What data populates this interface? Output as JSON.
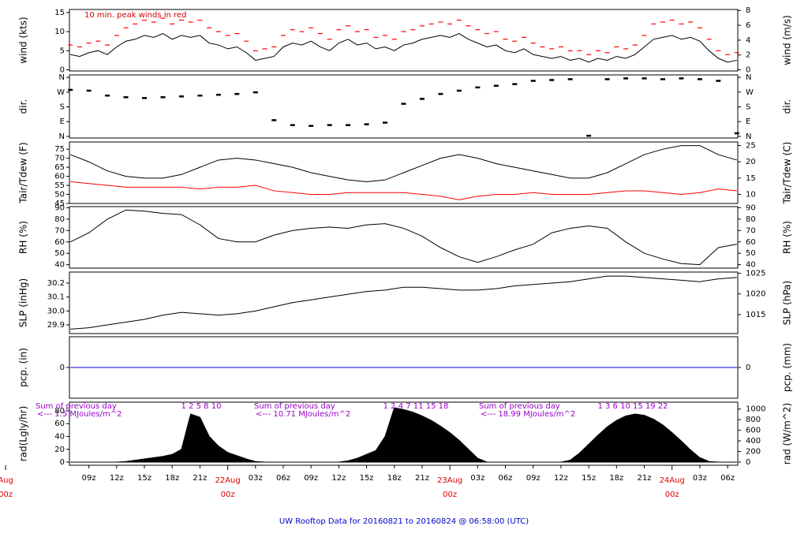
{
  "chart_data": [
    {
      "type": "line",
      "ylabel": "wind (kts)",
      "y2label": "wind (m/s)",
      "note": "10 min. peak winds in red",
      "xlim": [
        6.9,
        79.1
      ],
      "ylim": [
        -0.3,
        15.8
      ],
      "yticks": [
        0,
        5,
        10,
        15
      ],
      "y2lim": [
        -0.15,
        8.13
      ],
      "y2ticks": [
        0,
        2,
        4,
        6,
        8
      ],
      "x": [
        7,
        8,
        9,
        10,
        11,
        12,
        13,
        14,
        15,
        16,
        17,
        18,
        19,
        20,
        21,
        22,
        23,
        24,
        25,
        26,
        27,
        28,
        29,
        30,
        31,
        32,
        33,
        34,
        35,
        36,
        37,
        38,
        39,
        40,
        41,
        42,
        43,
        44,
        45,
        46,
        47,
        48,
        49,
        50,
        51,
        52,
        53,
        54,
        55,
        56,
        57,
        58,
        59,
        60,
        61,
        62,
        63,
        64,
        65,
        66,
        67,
        68,
        69,
        70,
        71,
        72,
        73,
        74,
        75,
        76,
        77,
        78,
        79
      ],
      "series": [
        {
          "color": "#000000",
          "style": "line",
          "values": [
            4,
            3.5,
            4.5,
            5,
            4,
            6,
            7.5,
            8,
            9,
            8.5,
            9.5,
            8,
            9,
            8.5,
            9,
            7,
            6.5,
            5.5,
            6,
            4.5,
            2.5,
            3,
            3.5,
            6,
            7,
            6.5,
            7.5,
            6,
            5,
            7,
            8,
            6.5,
            7,
            5.5,
            6,
            5,
            6.5,
            7,
            8,
            8.5,
            9,
            8.5,
            9.5,
            8,
            7,
            6,
            6.5,
            5,
            4.5,
            5.5,
            4,
            3.5,
            3,
            3.5,
            2.5,
            3,
            2,
            3,
            2.5,
            3.5,
            3,
            4,
            6,
            8,
            8.5,
            9,
            8,
            8.5,
            7.5,
            5,
            3,
            2,
            2.5
          ]
        },
        {
          "color": "#ff0000",
          "style": "dash",
          "values": [
            6.5,
            6,
            7,
            7.5,
            6.5,
            9,
            11,
            12,
            13,
            12.5,
            13.5,
            12,
            13,
            12.5,
            13,
            11,
            10,
            9,
            9.5,
            7.5,
            5,
            5.5,
            6,
            9,
            10.5,
            10,
            11,
            9.5,
            8,
            10.5,
            11.5,
            10,
            10.5,
            8.5,
            9,
            8,
            10,
            10.5,
            11.5,
            12,
            12.5,
            12,
            13,
            11.5,
            10.5,
            9.5,
            10,
            8,
            7.5,
            8.5,
            7,
            6,
            5.5,
            6,
            5,
            5,
            4,
            5,
            4.5,
            6,
            5.5,
            6.5,
            9,
            12,
            12.5,
            13,
            12,
            12.5,
            11,
            8,
            5,
            4,
            4.5
          ]
        }
      ]
    },
    {
      "type": "scatter",
      "ylabel": "dir.",
      "y2label": "dir.",
      "xlim": [
        6.9,
        79.1
      ],
      "ylim": [
        -10,
        375
      ],
      "yticks": [
        {
          "value": 360,
          "label": "N"
        },
        {
          "value": 270,
          "label": "W"
        },
        {
          "value": 180,
          "label": "S"
        },
        {
          "value": 90,
          "label": "E"
        },
        {
          "value": 0,
          "label": "N"
        }
      ],
      "y2lim": [
        -10,
        375
      ],
      "y2ticks": [
        {
          "value": 360,
          "label": "N"
        },
        {
          "value": 270,
          "label": "W"
        },
        {
          "value": 180,
          "label": "S"
        },
        {
          "value": 90,
          "label": "E"
        },
        {
          "value": 0,
          "label": "N"
        }
      ],
      "x": [
        7,
        9,
        11,
        13,
        15,
        17,
        19,
        21,
        23,
        25,
        27,
        29,
        31,
        33,
        35,
        37,
        39,
        41,
        43,
        45,
        47,
        49,
        51,
        53,
        55,
        57,
        59,
        61,
        63,
        65,
        67,
        69,
        71,
        73,
        75,
        77,
        79
      ],
      "series": [
        {
          "color": "#000000",
          "values": [
            285,
            280,
            250,
            240,
            235,
            240,
            245,
            250,
            255,
            260,
            270,
            100,
            70,
            65,
            70,
            70,
            75,
            85,
            200,
            230,
            260,
            280,
            300,
            310,
            320,
            340,
            345,
            350,
            5,
            350,
            355,
            355,
            350,
            355,
            350,
            340,
            20
          ]
        }
      ]
    },
    {
      "type": "line",
      "ylabel": "Tair/Tdew (F)",
      "y2label": "Tair/Tdew (C)",
      "xlim": [
        6.9,
        79.1
      ],
      "ylim": [
        45,
        79
      ],
      "yticks": [
        45,
        50,
        55,
        60,
        65,
        70,
        75
      ],
      "y2lim": [
        7.2,
        26.1
      ],
      "y2ticks": [
        10,
        15,
        20,
        25
      ],
      "x": [
        7,
        9,
        11,
        13,
        15,
        17,
        19,
        21,
        23,
        25,
        27,
        29,
        31,
        33,
        35,
        37,
        39,
        41,
        43,
        45,
        47,
        49,
        51,
        53,
        55,
        57,
        59,
        61,
        63,
        65,
        67,
        69,
        71,
        73,
        75,
        77,
        79
      ],
      "series": [
        {
          "color": "#000000",
          "style": "line",
          "values": [
            72,
            68,
            63,
            60,
            59,
            59,
            61,
            65,
            69,
            70,
            69,
            67,
            65,
            62,
            60,
            58,
            57,
            58,
            62,
            66,
            70,
            72,
            70,
            67,
            65,
            63,
            61,
            59,
            59,
            62,
            67,
            72,
            75,
            77,
            77,
            72,
            69
          ]
        },
        {
          "color": "#ff0000",
          "style": "line",
          "values": [
            57,
            56,
            55,
            54,
            54,
            54,
            54,
            53,
            54,
            54,
            55,
            52,
            51,
            50,
            50,
            51,
            51,
            51,
            51,
            50,
            49,
            47,
            49,
            50,
            50,
            51,
            50,
            50,
            50,
            51,
            52,
            52,
            51,
            50,
            51,
            53,
            52
          ]
        }
      ]
    },
    {
      "type": "line",
      "ylabel": "RH (%)",
      "y2label": "RH (%)",
      "xlim": [
        6.9,
        79.1
      ],
      "ylim": [
        37,
        91
      ],
      "yticks": [
        40,
        50,
        60,
        70,
        80,
        90
      ],
      "y2lim": [
        37,
        91
      ],
      "y2ticks": [
        40,
        50,
        60,
        70,
        80,
        90
      ],
      "x": [
        7,
        9,
        11,
        13,
        15,
        17,
        19,
        21,
        23,
        25,
        27,
        29,
        31,
        33,
        35,
        37,
        39,
        41,
        43,
        45,
        47,
        49,
        51,
        53,
        55,
        57,
        59,
        61,
        63,
        65,
        67,
        69,
        71,
        73,
        75,
        77,
        79
      ],
      "series": [
        {
          "color": "#000000",
          "style": "line",
          "values": [
            60,
            68,
            80,
            88,
            87,
            85,
            84,
            75,
            63,
            60,
            60,
            66,
            70,
            72,
            73,
            72,
            75,
            76,
            72,
            65,
            55,
            47,
            42,
            47,
            53,
            58,
            68,
            72,
            74,
            72,
            60,
            50,
            45,
            41,
            40,
            55,
            58
          ]
        }
      ]
    },
    {
      "type": "line",
      "ylabel": "SLP (inHg)",
      "y2label": "SLP (hPa)",
      "xlim": [
        6.9,
        79.1
      ],
      "ylim": [
        29.838,
        30.279
      ],
      "yticks": [
        29.9,
        {
          "value": 30,
          "label": "30.0"
        },
        30.1,
        30.2
      ],
      "y2lim": [
        1010.4,
        1025.3
      ],
      "y2ticks": [
        1015,
        1020,
        1025
      ],
      "x": [
        7,
        9,
        11,
        13,
        15,
        17,
        19,
        21,
        23,
        25,
        27,
        29,
        31,
        33,
        35,
        37,
        39,
        41,
        43,
        45,
        47,
        49,
        51,
        53,
        55,
        57,
        59,
        61,
        63,
        65,
        67,
        69,
        71,
        73,
        75,
        77,
        79
      ],
      "series": [
        {
          "color": "#000000",
          "style": "line",
          "values": [
            29.87,
            29.88,
            29.9,
            29.92,
            29.94,
            29.97,
            29.99,
            29.98,
            29.97,
            29.98,
            30,
            30.03,
            30.06,
            30.08,
            30.1,
            30.12,
            30.14,
            30.15,
            30.17,
            30.17,
            30.16,
            30.15,
            30.15,
            30.16,
            30.18,
            30.19,
            30.2,
            30.21,
            30.23,
            30.25,
            30.25,
            30.24,
            30.23,
            30.22,
            30.21,
            30.23,
            30.24
          ]
        }
      ]
    },
    {
      "type": "line",
      "ylabel": "pcp. (in)",
      "y2label": "pcp. (mm)",
      "xlim": [
        6.9,
        79.1
      ],
      "ylim": [
        -1,
        1
      ],
      "yticks": [
        0
      ],
      "y2lim": [
        -25.4,
        25.4
      ],
      "y2ticks": [
        0
      ],
      "x": [
        7,
        79
      ],
      "series": [
        {
          "color": "#0000cc",
          "style": "line",
          "values": [
            0,
            0
          ]
        }
      ]
    },
    {
      "type": "area",
      "ylabel": "rad(Lgly/hr)",
      "y2label": "rad (W/m^2)",
      "notes": [
        "Sum of previous day",
        "<--- 1.5 MJoules/m^2",
        "Sum of previous day",
        "<--- 10.71 MJoules/m^2",
        "Sum of previous day",
        "<--- 18.99 MJoules/m^2"
      ],
      "hour_marks": [
        "1   2   5   8   10",
        "1   2   4   7   11   15   18",
        "1   3   6   10   15   19   22"
      ],
      "xlim": [
        6.9,
        79.1
      ],
      "ylim": [
        -4.9,
        93.5
      ],
      "yticks": [
        0,
        20,
        40,
        60,
        80
      ],
      "y2lim": [
        -60,
        1130
      ],
      "y2ticks": [
        0,
        200,
        400,
        600,
        800,
        1000
      ],
      "xticks": [
        {
          "value": 9,
          "label": "09z"
        },
        {
          "value": 12,
          "label": "12z"
        },
        {
          "value": 15,
          "label": "15z"
        },
        {
          "value": 18,
          "label": "18z"
        },
        {
          "value": 21,
          "label": "21z"
        },
        {
          "value": 27,
          "label": "03z"
        },
        {
          "value": 30,
          "label": "06z"
        },
        {
          "value": 33,
          "label": "09z"
        },
        {
          "value": 36,
          "label": "12z"
        },
        {
          "value": 39,
          "label": "15z"
        },
        {
          "value": 42,
          "label": "18z"
        },
        {
          "value": 45,
          "label": "21z"
        },
        {
          "value": 51,
          "label": "03z"
        },
        {
          "value": 54,
          "label": "06z"
        },
        {
          "value": 57,
          "label": "09z"
        },
        {
          "value": 60,
          "label": "12z"
        },
        {
          "value": 63,
          "label": "15z"
        },
        {
          "value": 66,
          "label": "18z"
        },
        {
          "value": 69,
          "label": "21z"
        },
        {
          "value": 75,
          "label": "03z"
        },
        {
          "value": 78,
          "label": "06z"
        }
      ],
      "day_labels": [
        {
          "value": 0,
          "day": "Aug",
          "hour": "00z"
        },
        {
          "value": 24,
          "day": "22Aug",
          "hour": "00z"
        },
        {
          "value": 48,
          "day": "23Aug",
          "hour": "00z"
        },
        {
          "value": 72,
          "day": "24Aug",
          "hour": "00z"
        }
      ],
      "title": "UW Rooftop Data for 20160821  to  20160824 @ 06:58:00  (UTC)",
      "x": [
        7,
        8,
        9,
        10,
        11,
        12,
        13,
        14,
        15,
        16,
        17,
        18,
        19,
        20,
        21,
        22,
        23,
        24,
        25,
        26,
        27,
        28,
        29,
        30,
        31,
        32,
        33,
        34,
        35,
        36,
        37,
        38,
        39,
        40,
        41,
        42,
        43,
        44,
        45,
        46,
        47,
        48,
        49,
        50,
        51,
        52,
        53,
        54,
        55,
        56,
        57,
        58,
        59,
        60,
        61,
        62,
        63,
        64,
        65,
        66,
        67,
        68,
        69,
        70,
        71,
        72,
        73,
        74,
        75,
        76,
        77,
        78,
        79
      ],
      "series": [
        {
          "color": "#000000",
          "values": [
            0,
            0,
            0,
            0,
            0,
            0,
            1,
            3,
            5,
            7,
            9,
            12,
            20,
            75,
            70,
            40,
            25,
            15,
            10,
            5,
            1,
            0,
            0,
            0,
            0,
            0,
            0,
            0,
            0,
            0,
            2,
            6,
            12,
            18,
            40,
            85,
            82,
            78,
            72,
            65,
            56,
            46,
            34,
            20,
            6,
            0,
            0,
            0,
            0,
            0,
            0,
            0,
            0,
            0,
            3,
            14,
            28,
            42,
            55,
            65,
            72,
            75,
            73,
            67,
            58,
            46,
            33,
            19,
            7,
            1,
            0,
            0,
            0
          ]
        }
      ]
    }
  ]
}
